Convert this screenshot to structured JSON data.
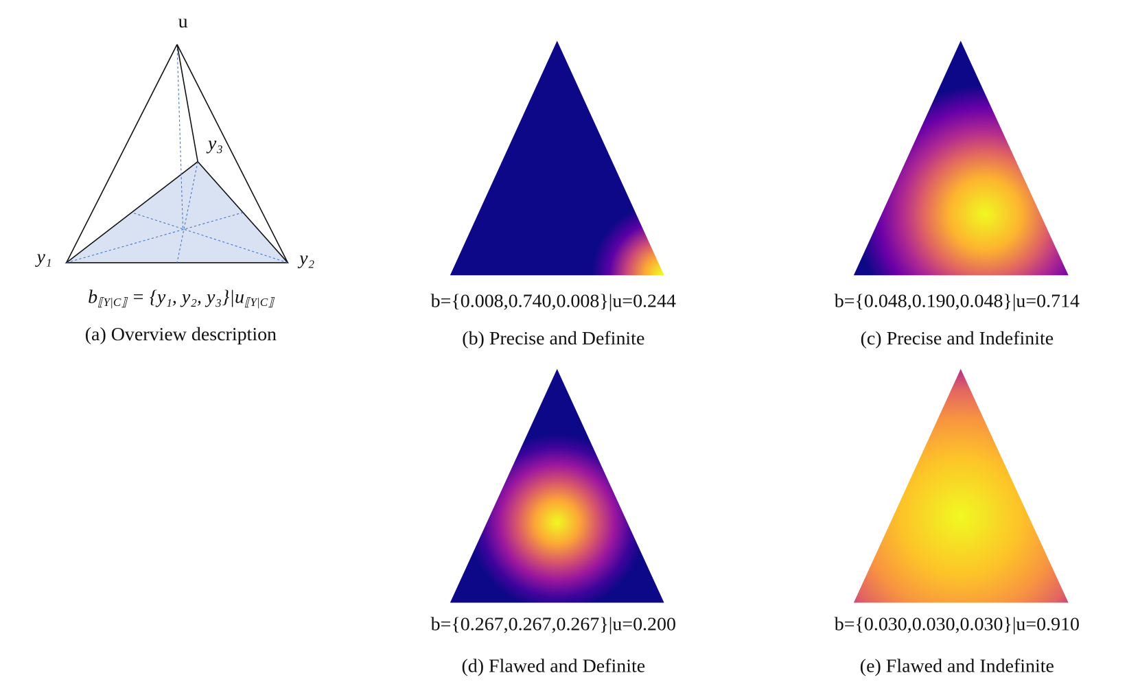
{
  "panels": [
    {
      "vertex_labels": {
        "u": "u",
        "y1": "y₁",
        "y2": "y₂",
        "y3": "y₃"
      },
      "formula": {
        "b": "b",
        "b_sub": "⟦Y|C⟧",
        "middle": " = {y₁, y₂, y₃}|u",
        "u_sub": "⟦Y|C⟧"
      },
      "caption": "(a) Overview description"
    },
    {
      "label": "b={0.008,0.740,0.008}|u=0.244",
      "caption": "(b) Precise and Definite"
    },
    {
      "label": "b={0.048,0.190,0.048}|u=0.714",
      "caption": "(c) Precise and Indefinite"
    },
    {
      "label": "b={0.267,0.267,0.267}|u=0.200",
      "caption": "(d) Flawed and Definite"
    },
    {
      "label": "b={0.030,0.030,0.030}|u=0.910",
      "caption": "(e) Flawed and Indefinite"
    }
  ]
}
